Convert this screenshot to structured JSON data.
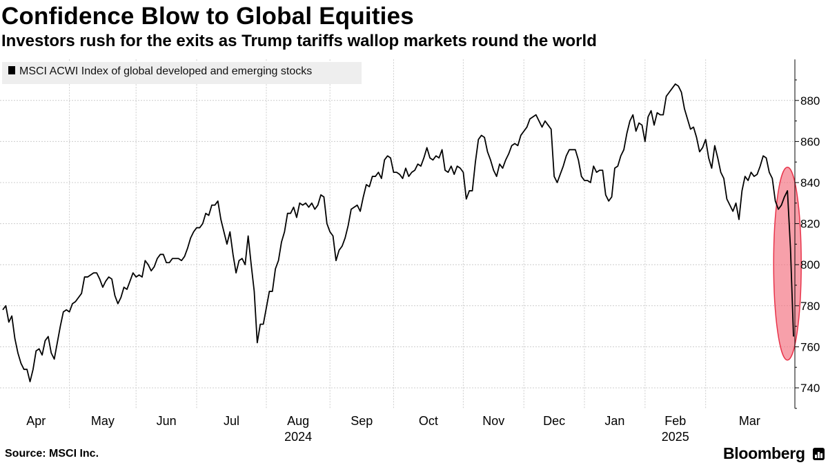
{
  "header": {
    "title": "Confidence Blow to Global Equities",
    "subtitle": "Investors rush for the exits as Trump tariffs wallop markets round the world"
  },
  "footer": {
    "source": "Source: MSCI Inc.",
    "brand": "Bloomberg"
  },
  "colors": {
    "line": "#000000",
    "grid": "#cccccc",
    "highlight_fill": "#f26d7d",
    "highlight_stroke": "#e8334a",
    "legend_bg": "#eeeeee"
  },
  "chart_data": {
    "type": "line",
    "title": "Confidence Blow to Global Equities",
    "xlabel": "",
    "ylabel": "",
    "ylim": [
      730,
      900
    ],
    "yticks": [
      740,
      760,
      780,
      800,
      820,
      840,
      860,
      880
    ],
    "grid": true,
    "legend": {
      "position": "top-left",
      "label": "MSCI ACWI Index of global developed and emerging stocks"
    },
    "months": [
      "Apr",
      "May",
      "Jun",
      "Jul",
      "Aug",
      "Sep",
      "Oct",
      "Nov",
      "Dec",
      "Jan",
      "Feb",
      "Mar"
    ],
    "years": [
      "2024",
      "2025"
    ],
    "annotation": "highlighted sell-off at end of series",
    "series": [
      {
        "name": "MSCI ACWI Index of global developed and emerging stocks",
        "values": [
          778,
          780,
          772,
          775,
          764,
          757,
          752,
          749,
          749,
          743,
          749,
          758,
          759,
          756,
          763,
          765,
          757,
          754,
          762,
          770,
          777,
          778,
          777,
          781,
          782,
          784,
          786,
          794,
          794,
          795,
          796,
          796,
          793,
          789,
          792,
          794,
          793,
          785,
          781,
          784,
          789,
          788,
          792,
          796,
          794,
          795,
          794,
          802,
          800,
          797,
          799,
          803,
          805,
          805,
          801,
          801,
          803,
          803,
          803,
          802,
          804,
          808,
          813,
          816,
          818,
          818,
          820,
          825,
          824,
          829,
          829,
          831,
          822,
          816,
          810,
          816,
          805,
          796,
          802,
          803,
          800,
          814,
          800,
          787,
          762,
          771,
          771,
          779,
          787,
          787,
          798,
          802,
          811,
          816,
          825,
          825,
          828,
          823,
          830,
          829,
          830,
          828,
          830,
          827,
          829,
          834,
          833,
          820,
          816,
          814,
          802,
          807,
          809,
          813,
          819,
          827,
          828,
          829,
          826,
          833,
          839,
          838,
          843,
          843,
          845,
          842,
          851,
          853,
          852,
          845,
          845,
          844,
          842,
          847,
          843,
          845,
          846,
          849,
          848,
          852,
          857,
          852,
          851,
          853,
          852,
          856,
          846,
          845,
          848,
          844,
          848,
          847,
          845,
          832,
          836,
          836,
          850,
          861,
          863,
          862,
          855,
          851,
          846,
          843,
          849,
          847,
          851,
          854,
          858,
          859,
          858,
          863,
          865,
          867,
          871,
          872,
          873,
          870,
          867,
          870,
          868,
          866,
          843,
          840,
          844,
          848,
          853,
          856,
          856,
          856,
          851,
          843,
          841,
          841,
          840,
          848,
          845,
          846,
          846,
          834,
          831,
          833,
          847,
          848,
          853,
          856,
          864,
          870,
          873,
          865,
          869,
          868,
          860,
          872,
          875,
          868,
          874,
          873,
          873,
          882,
          884,
          886,
          888,
          887,
          884,
          876,
          871,
          866,
          867,
          862,
          855,
          857,
          861,
          852,
          847,
          858,
          852,
          845,
          842,
          832,
          829,
          826,
          830,
          822,
          836,
          843,
          841,
          845,
          843,
          844,
          848,
          853,
          852,
          845,
          842,
          831,
          827,
          829,
          833,
          836,
          808,
          765
        ]
      }
    ]
  }
}
